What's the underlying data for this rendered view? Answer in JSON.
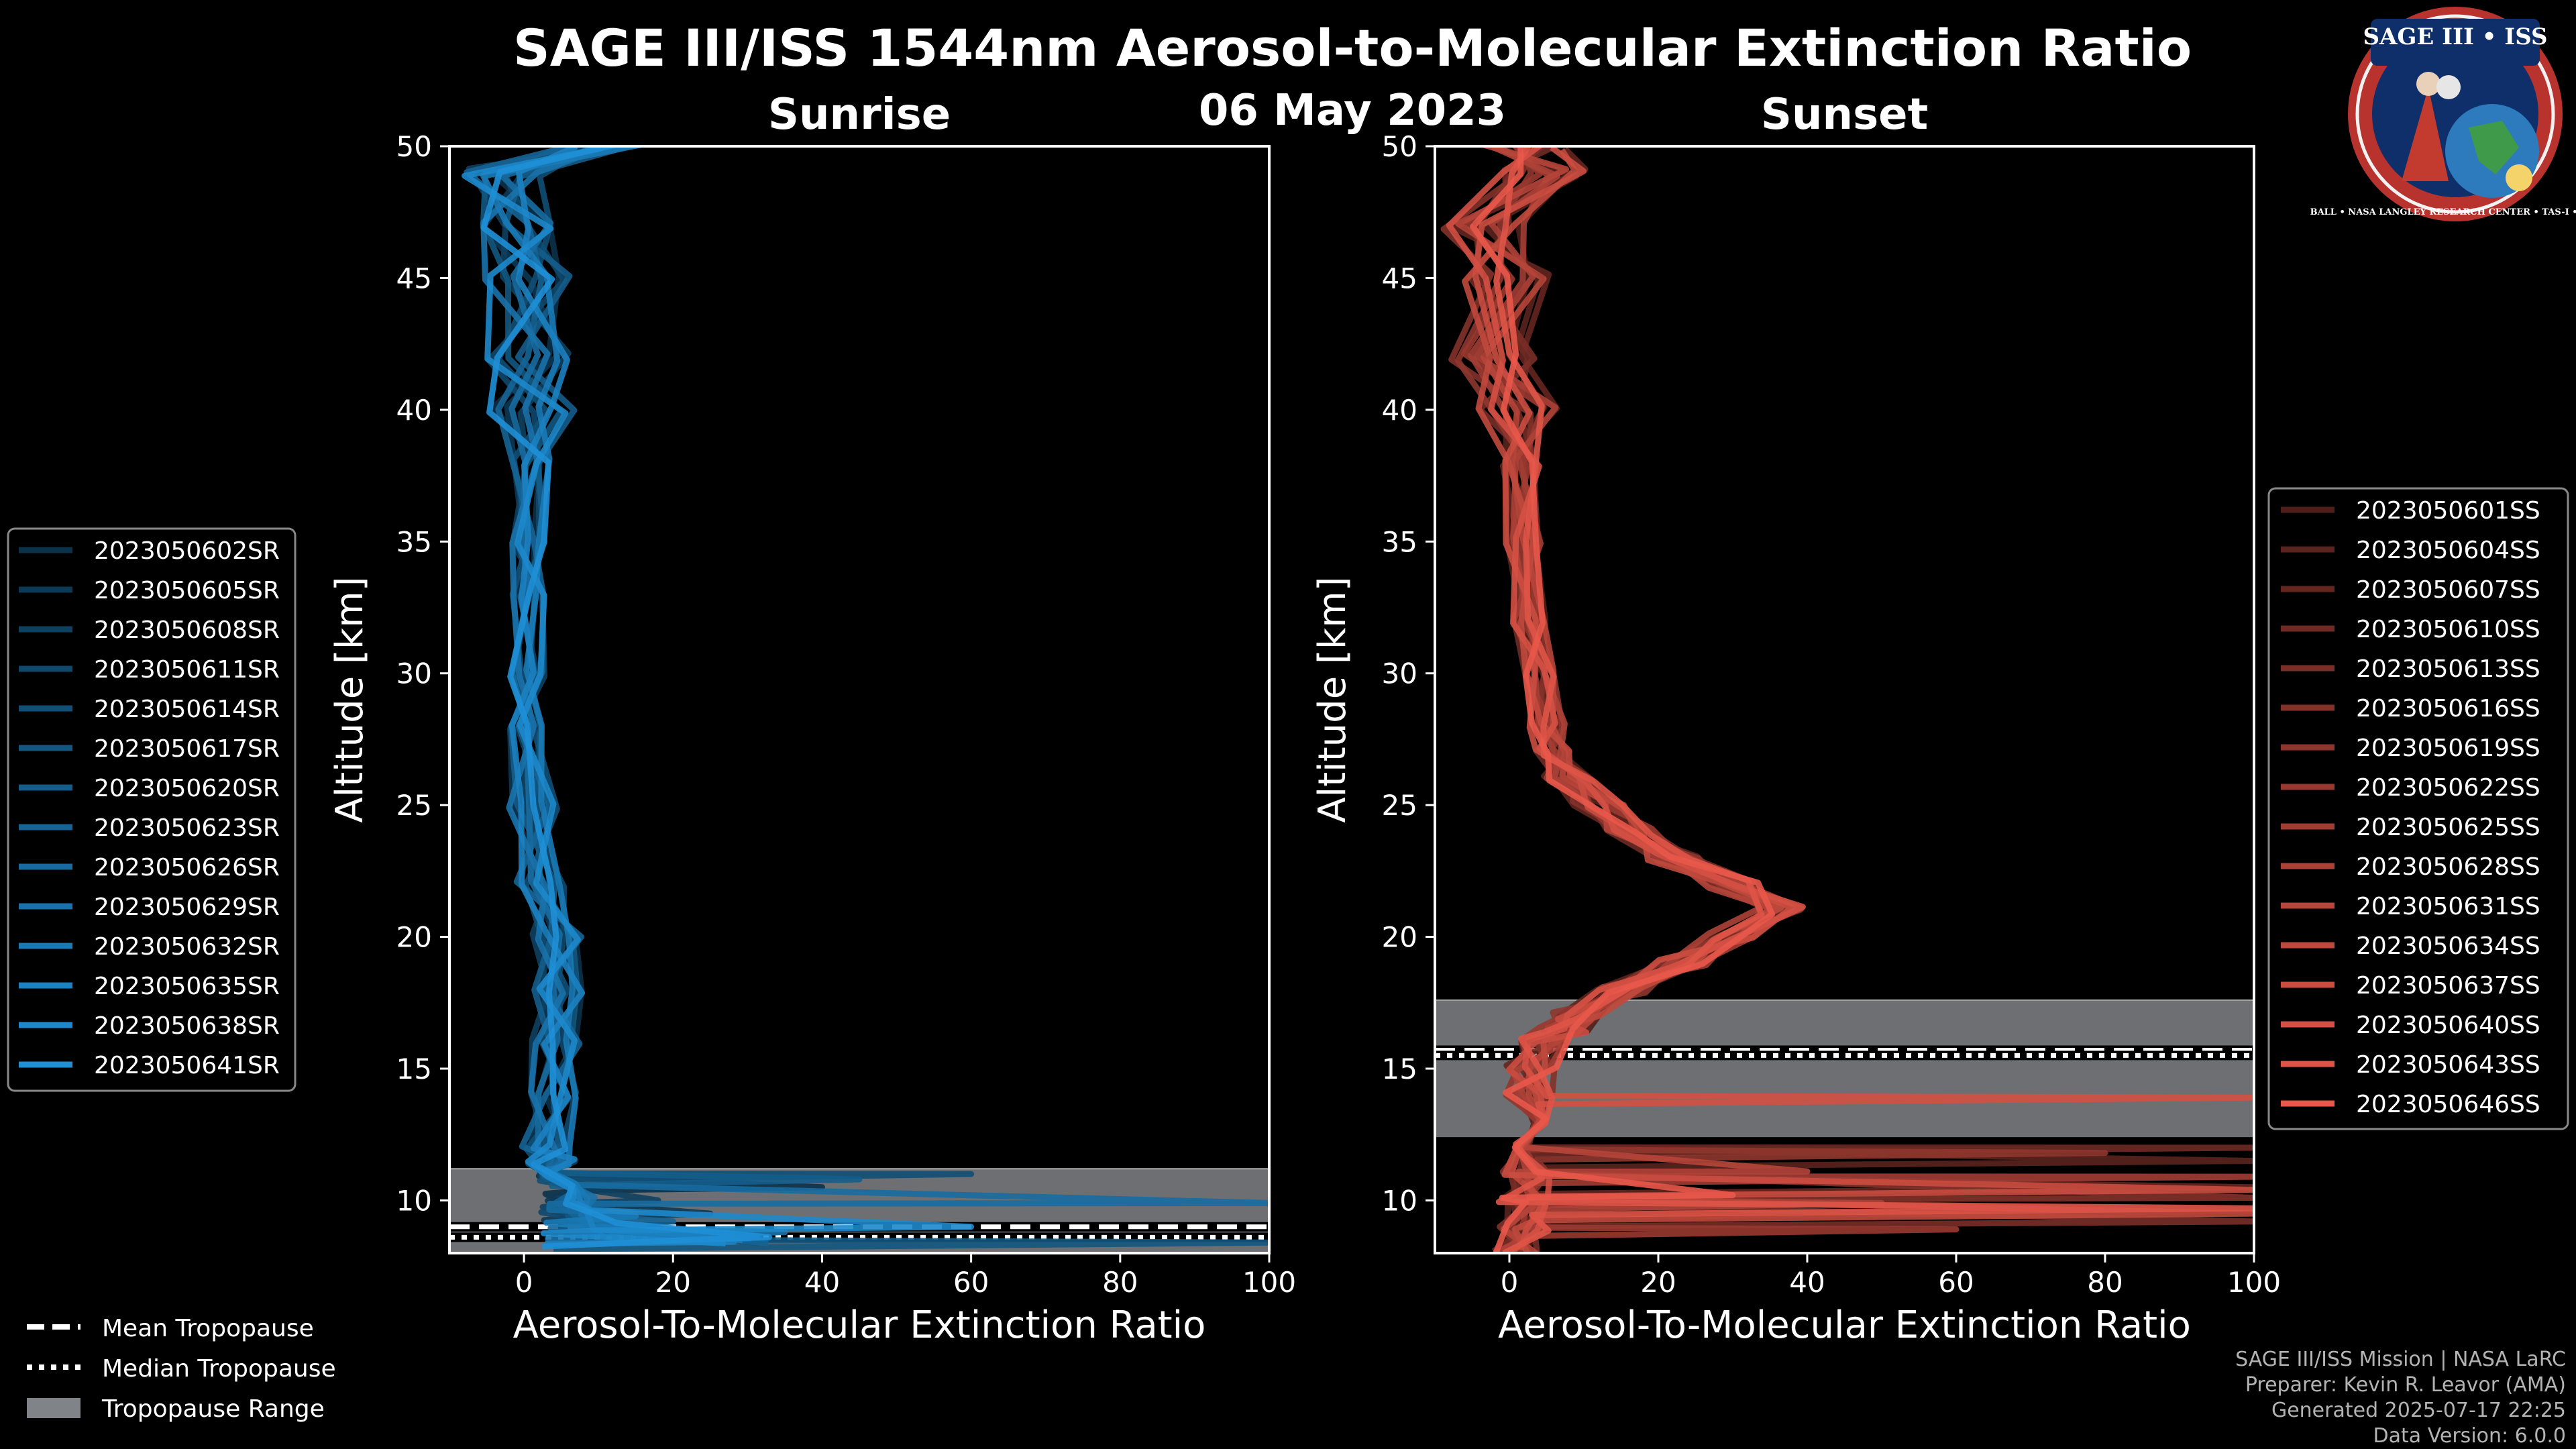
{
  "title": "SAGE III/ISS 1544nm Aerosol-to-Molecular Extinction Ratio",
  "date": "06 May 2023",
  "logo": {
    "text": "SAGE III • ISS",
    "ring_text": "BALL • NASA LANGLEY RESEARCH CENTER • TAS-I • ESA"
  },
  "credits": [
    "SAGE III/ISS Mission | NASA LaRC",
    "Preparer: Kevin R. Leavor (AMA)",
    "Generated 2025-07-17 22:25",
    "Data Version: 6.0.0"
  ],
  "tropopause_legend": [
    "Mean Tropopause",
    "Median Tropopause",
    "Tropopause Range"
  ],
  "colors": {
    "sunrise": "#1f8fd6",
    "sunset": "#e8584a",
    "range": "#808387",
    "background": "#000000"
  },
  "chart_data": [
    {
      "type": "line",
      "title": "Sunrise",
      "xlabel": "Aerosol-To-Molecular Extinction Ratio",
      "ylabel": "Altitude [km]",
      "xlim": [
        -10,
        100
      ],
      "ylim": [
        8,
        50
      ],
      "xticks": [
        0,
        20,
        40,
        60,
        80,
        100
      ],
      "yticks": [
        10,
        15,
        20,
        25,
        30,
        35,
        40,
        45,
        50
      ],
      "legend_position": "left",
      "tropopause": {
        "mean": 9.0,
        "median": 8.6,
        "range": [
          8,
          11.2
        ]
      },
      "representative_profile": {
        "altitude": [
          8.5,
          9,
          9.5,
          10,
          10.5,
          11,
          11.5,
          12,
          14,
          16,
          18,
          20,
          22,
          25,
          28,
          30,
          33,
          35,
          38,
          40,
          42,
          45,
          47,
          49,
          50
        ],
        "ratio": [
          30,
          12,
          8,
          6,
          5,
          4,
          3.5,
          3,
          3.5,
          4,
          4.5,
          4.5,
          2.5,
          1.5,
          0.5,
          0.5,
          0.3,
          0.5,
          1,
          1,
          0.5,
          0.5,
          -1,
          -3,
          10
        ]
      },
      "series": [
        {
          "name": "2023050602SR",
          "spike": {
            "altitude": 10.5,
            "value": 40
          }
        },
        {
          "name": "2023050605SR",
          "spike": {
            "altitude": 9.5,
            "value": 25
          }
        },
        {
          "name": "2023050608SR",
          "spike": {
            "altitude": 10.0,
            "value": 18
          }
        },
        {
          "name": "2023050611SR",
          "spike": {
            "altitude": 9.8,
            "value": 12
          }
        },
        {
          "name": "2023050614SR",
          "spike": {
            "altitude": 11.0,
            "value": 60
          }
        },
        {
          "name": "2023050617SR",
          "spike": {
            "altitude": 8.4,
            "value": 100
          }
        },
        {
          "name": "2023050620SR",
          "spike": {
            "altitude": 10.8,
            "value": 45
          }
        },
        {
          "name": "2023050623SR",
          "spike": {
            "altitude": 9.2,
            "value": 20
          }
        },
        {
          "name": "2023050626SR",
          "spike": {
            "altitude": 9.9,
            "value": 100
          }
        },
        {
          "name": "2023050629SR",
          "spike": {
            "altitude": 8.8,
            "value": 35
          }
        },
        {
          "name": "2023050632SR",
          "spike": {
            "altitude": 9.4,
            "value": 15
          }
        },
        {
          "name": "2023050635SR",
          "spike": {
            "altitude": 8.6,
            "value": 28
          }
        },
        {
          "name": "2023050638SR",
          "spike": {
            "altitude": 9.0,
            "value": 60
          }
        },
        {
          "name": "2023050641SR",
          "spike": {
            "altitude": 8.5,
            "value": 22
          }
        }
      ]
    },
    {
      "type": "line",
      "title": "Sunset",
      "xlabel": "Aerosol-To-Molecular Extinction Ratio",
      "ylabel": "Altitude [km]",
      "xlim": [
        -10,
        100
      ],
      "ylim": [
        8,
        50
      ],
      "xticks": [
        0,
        20,
        40,
        60,
        80,
        100
      ],
      "yticks": [
        10,
        15,
        20,
        25,
        30,
        35,
        40,
        45,
        50
      ],
      "legend_position": "right",
      "tropopause": {
        "mean": 15.7,
        "median": 15.5,
        "range": [
          12.4,
          17.6
        ]
      },
      "representative_profile": {
        "altitude": [
          8,
          9,
          10,
          11,
          12,
          13,
          14,
          15,
          16,
          16.5,
          17,
          18,
          19,
          20,
          21,
          22,
          23,
          24,
          25,
          26,
          27,
          28,
          30,
          32,
          35,
          38,
          40,
          42,
          45,
          47,
          49,
          50
        ],
        "ratio": [
          1,
          2,
          2,
          2.5,
          2.5,
          2,
          2.5,
          3,
          5,
          7,
          9,
          15,
          23,
          30,
          36,
          30,
          22,
          16,
          12,
          8,
          6,
          5,
          4,
          3,
          2,
          1.5,
          1,
          -2,
          0,
          -3,
          5,
          2
        ]
      },
      "series": [
        {
          "name": "2023050601SS",
          "spike": {
            "altitude": 9.6,
            "value": 100
          }
        },
        {
          "name": "2023050604SS",
          "spike": {
            "altitude": 11.5,
            "value": 100
          }
        },
        {
          "name": "2023050607SS",
          "spike": {
            "altitude": 10.5,
            "value": 100
          }
        },
        {
          "name": "2023050610SS",
          "spike": {
            "altitude": 12.0,
            "value": 100
          }
        },
        {
          "name": "2023050613SS",
          "spike": {
            "altitude": 9.2,
            "value": 100
          }
        },
        {
          "name": "2023050616SS",
          "spike": {
            "altitude": 10.1,
            "value": 100
          }
        },
        {
          "name": "2023050619SS",
          "spike": {
            "altitude": 11.8,
            "value": 80
          }
        },
        {
          "name": "2023050622SS",
          "spike": {
            "altitude": 8.9,
            "value": 60
          }
        },
        {
          "name": "2023050625SS",
          "spike": {
            "altitude": 10.9,
            "value": 100
          }
        },
        {
          "name": "2023050628SS",
          "spike": {
            "altitude": 9.9,
            "value": 50
          }
        },
        {
          "name": "2023050631SS",
          "spike": {
            "altitude": 11.1,
            "value": 40
          }
        },
        {
          "name": "2023050634SS",
          "spike": {
            "altitude": 9.5,
            "value": 100
          }
        },
        {
          "name": "2023050637SS",
          "spike": {
            "altitude": 10.4,
            "value": 100
          }
        },
        {
          "name": "2023050640SS",
          "spike": {
            "altitude": 13.9,
            "value": 100
          }
        },
        {
          "name": "2023050643SS",
          "spike": {
            "altitude": 9.7,
            "value": 100
          }
        },
        {
          "name": "2023050646SS",
          "spike": {
            "altitude": 10.2,
            "value": 30
          }
        }
      ]
    }
  ]
}
